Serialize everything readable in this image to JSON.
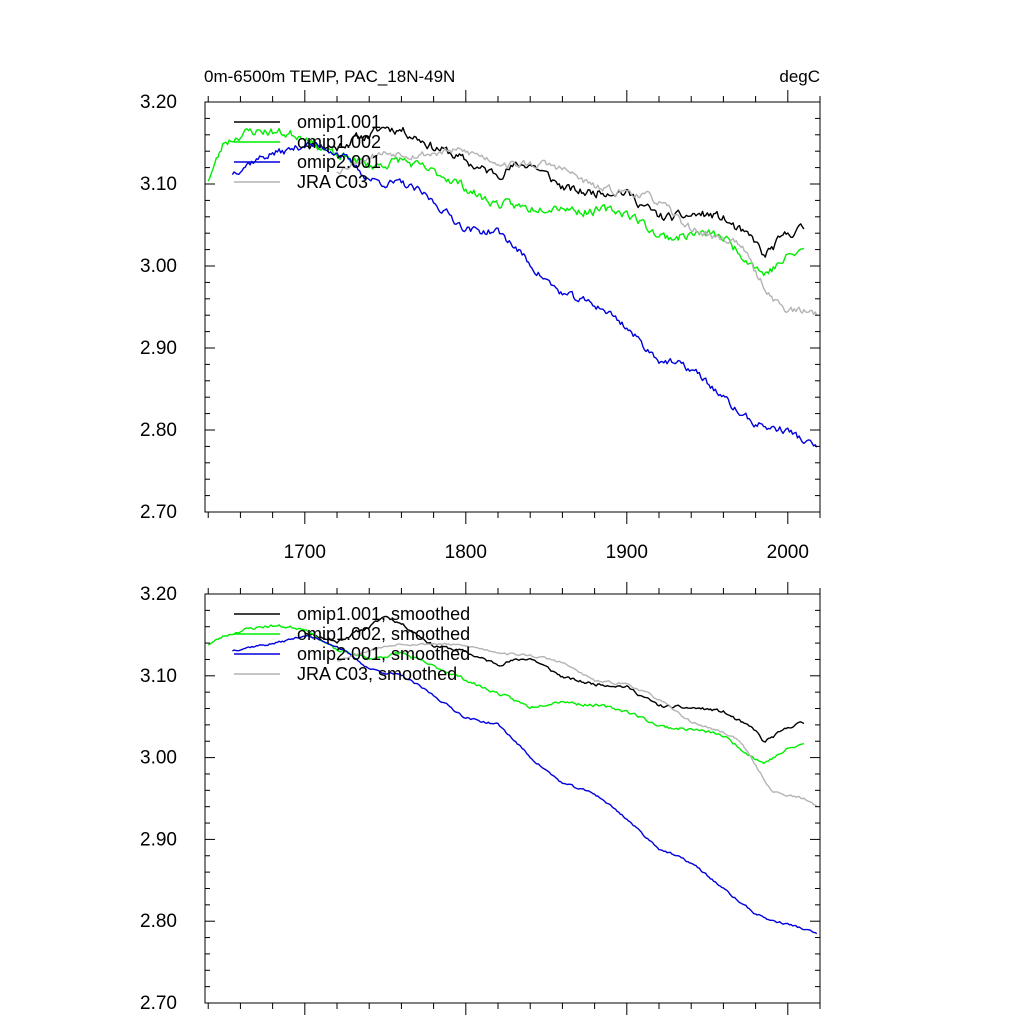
{
  "header": {
    "title": "0m-6500m TEMP, PAC_18N-49N",
    "units": "degC"
  },
  "chart_data": [
    {
      "type": "line",
      "ylim": [
        2.7,
        3.2
      ],
      "xlim": [
        1638,
        2020
      ],
      "yticks": [
        "3.20",
        "3.10",
        "3.00",
        "2.90",
        "2.80",
        "2.70"
      ],
      "ytick_values": [
        3.2,
        3.1,
        3.0,
        2.9,
        2.8,
        2.7
      ],
      "xticks": [
        "1700",
        "1800",
        "1900",
        "2000"
      ],
      "xtick_values": [
        1700,
        1800,
        1900,
        2000
      ],
      "legend_position": "top-left",
      "series": [
        {
          "name": "omip1.001",
          "color": "#000000",
          "noise": 0.006,
          "seed": 11,
          "x": [
            1700,
            1720,
            1740,
            1750,
            1760,
            1780,
            1800,
            1820,
            1840,
            1860,
            1880,
            1900,
            1920,
            1940,
            1960,
            1980,
            1985,
            1995,
            2000,
            2005,
            2010
          ],
          "y": [
            3.155,
            3.14,
            3.16,
            3.175,
            3.17,
            3.14,
            3.13,
            3.115,
            3.12,
            3.1,
            3.09,
            3.085,
            3.065,
            3.06,
            3.055,
            3.035,
            3.015,
            3.03,
            3.035,
            3.04,
            3.04
          ]
        },
        {
          "name": "omip1.002",
          "color": "#00ee00",
          "noise": 0.006,
          "seed": 23,
          "x": [
            1640,
            1650,
            1660,
            1680,
            1700,
            1720,
            1740,
            1760,
            1780,
            1800,
            1820,
            1840,
            1860,
            1880,
            1900,
            1920,
            1940,
            1960,
            1980,
            1985,
            2000,
            2010
          ],
          "y": [
            3.11,
            3.155,
            3.16,
            3.16,
            3.165,
            3.13,
            3.12,
            3.135,
            3.11,
            3.095,
            3.08,
            3.065,
            3.075,
            3.07,
            3.06,
            3.04,
            3.04,
            3.03,
            3.005,
            2.995,
            3.01,
            3.015
          ]
        },
        {
          "name": "omip2.001",
          "color": "#0000dd",
          "noise": 0.005,
          "seed": 37,
          "x": [
            1655,
            1680,
            1700,
            1720,
            1740,
            1760,
            1780,
            1800,
            1820,
            1840,
            1860,
            1880,
            1900,
            1920,
            1940,
            1960,
            1980,
            1990,
            2000,
            2010,
            2018
          ],
          "y": [
            3.11,
            3.14,
            3.15,
            3.135,
            3.11,
            3.1,
            3.075,
            3.05,
            3.04,
            3.0,
            2.97,
            2.95,
            2.925,
            2.89,
            2.87,
            2.84,
            2.81,
            2.8,
            2.795,
            2.785,
            2.78
          ]
        },
        {
          "name": "JRA C03",
          "color": "#b4b4b4",
          "noise": 0.005,
          "seed": 53,
          "x": [
            1720,
            1740,
            1760,
            1780,
            1800,
            1820,
            1840,
            1860,
            1880,
            1900,
            1920,
            1940,
            1960,
            1970,
            1980,
            1990,
            2000,
            2010,
            2018
          ],
          "y": [
            3.12,
            3.13,
            3.14,
            3.14,
            3.135,
            3.13,
            3.125,
            3.115,
            3.1,
            3.09,
            3.075,
            3.05,
            3.03,
            3.025,
            2.99,
            2.965,
            2.95,
            2.945,
            2.94
          ]
        }
      ]
    },
    {
      "type": "line",
      "ylim": [
        2.7,
        3.2
      ],
      "xlim": [
        1638,
        2020
      ],
      "yticks": [
        "3.20",
        "3.10",
        "3.00",
        "2.90",
        "2.80",
        "2.70"
      ],
      "ytick_values": [
        3.2,
        3.1,
        3.0,
        2.9,
        2.8,
        2.7
      ],
      "xticks": [],
      "xtick_values": [
        1700,
        1800,
        1900,
        2000
      ],
      "legend_position": "top-left",
      "series": [
        {
          "name": "omip1.001, smoothed",
          "color": "#000000",
          "noise": 0.002,
          "seed": 11,
          "x": [
            1700,
            1720,
            1740,
            1750,
            1760,
            1780,
            1800,
            1820,
            1840,
            1860,
            1880,
            1900,
            1920,
            1940,
            1960,
            1980,
            1985,
            1995,
            2000,
            2005,
            2010
          ],
          "y": [
            3.155,
            3.14,
            3.16,
            3.175,
            3.165,
            3.135,
            3.13,
            3.115,
            3.12,
            3.1,
            3.09,
            3.085,
            3.065,
            3.06,
            3.055,
            3.035,
            3.02,
            3.03,
            3.035,
            3.04,
            3.04
          ]
        },
        {
          "name": "omip1.002, smoothed",
          "color": "#00ee00",
          "noise": 0.002,
          "seed": 23,
          "x": [
            1640,
            1650,
            1660,
            1680,
            1700,
            1720,
            1740,
            1760,
            1780,
            1800,
            1820,
            1840,
            1860,
            1880,
            1900,
            1920,
            1940,
            1960,
            1980,
            1985,
            2000,
            2010
          ],
          "y": [
            3.14,
            3.15,
            3.155,
            3.16,
            3.16,
            3.13,
            3.12,
            3.13,
            3.11,
            3.095,
            3.08,
            3.06,
            3.07,
            3.065,
            3.055,
            3.04,
            3.035,
            3.025,
            3.0,
            2.995,
            3.01,
            3.015
          ]
        },
        {
          "name": "omip2.001, smoothed",
          "color": "#0000dd",
          "noise": 0.0015,
          "seed": 37,
          "x": [
            1655,
            1680,
            1700,
            1720,
            1740,
            1760,
            1780,
            1800,
            1820,
            1840,
            1860,
            1880,
            1900,
            1920,
            1940,
            1960,
            1980,
            1990,
            2000,
            2010,
            2018
          ],
          "y": [
            3.13,
            3.14,
            3.15,
            3.135,
            3.11,
            3.1,
            3.075,
            3.05,
            3.04,
            3.0,
            2.97,
            2.955,
            2.925,
            2.89,
            2.87,
            2.84,
            2.81,
            2.8,
            2.795,
            2.79,
            2.785
          ]
        },
        {
          "name": "JRA C03, smoothed",
          "color": "#b4b4b4",
          "noise": 0.0015,
          "seed": 53,
          "x": [
            1720,
            1740,
            1760,
            1780,
            1800,
            1820,
            1840,
            1860,
            1880,
            1900,
            1920,
            1940,
            1960,
            1970,
            1980,
            1990,
            2000,
            2010,
            2018
          ],
          "y": [
            3.12,
            3.13,
            3.14,
            3.14,
            3.135,
            3.13,
            3.125,
            3.115,
            3.095,
            3.09,
            3.07,
            3.045,
            3.03,
            3.02,
            2.99,
            2.96,
            2.955,
            2.95,
            2.94
          ]
        }
      ]
    }
  ]
}
